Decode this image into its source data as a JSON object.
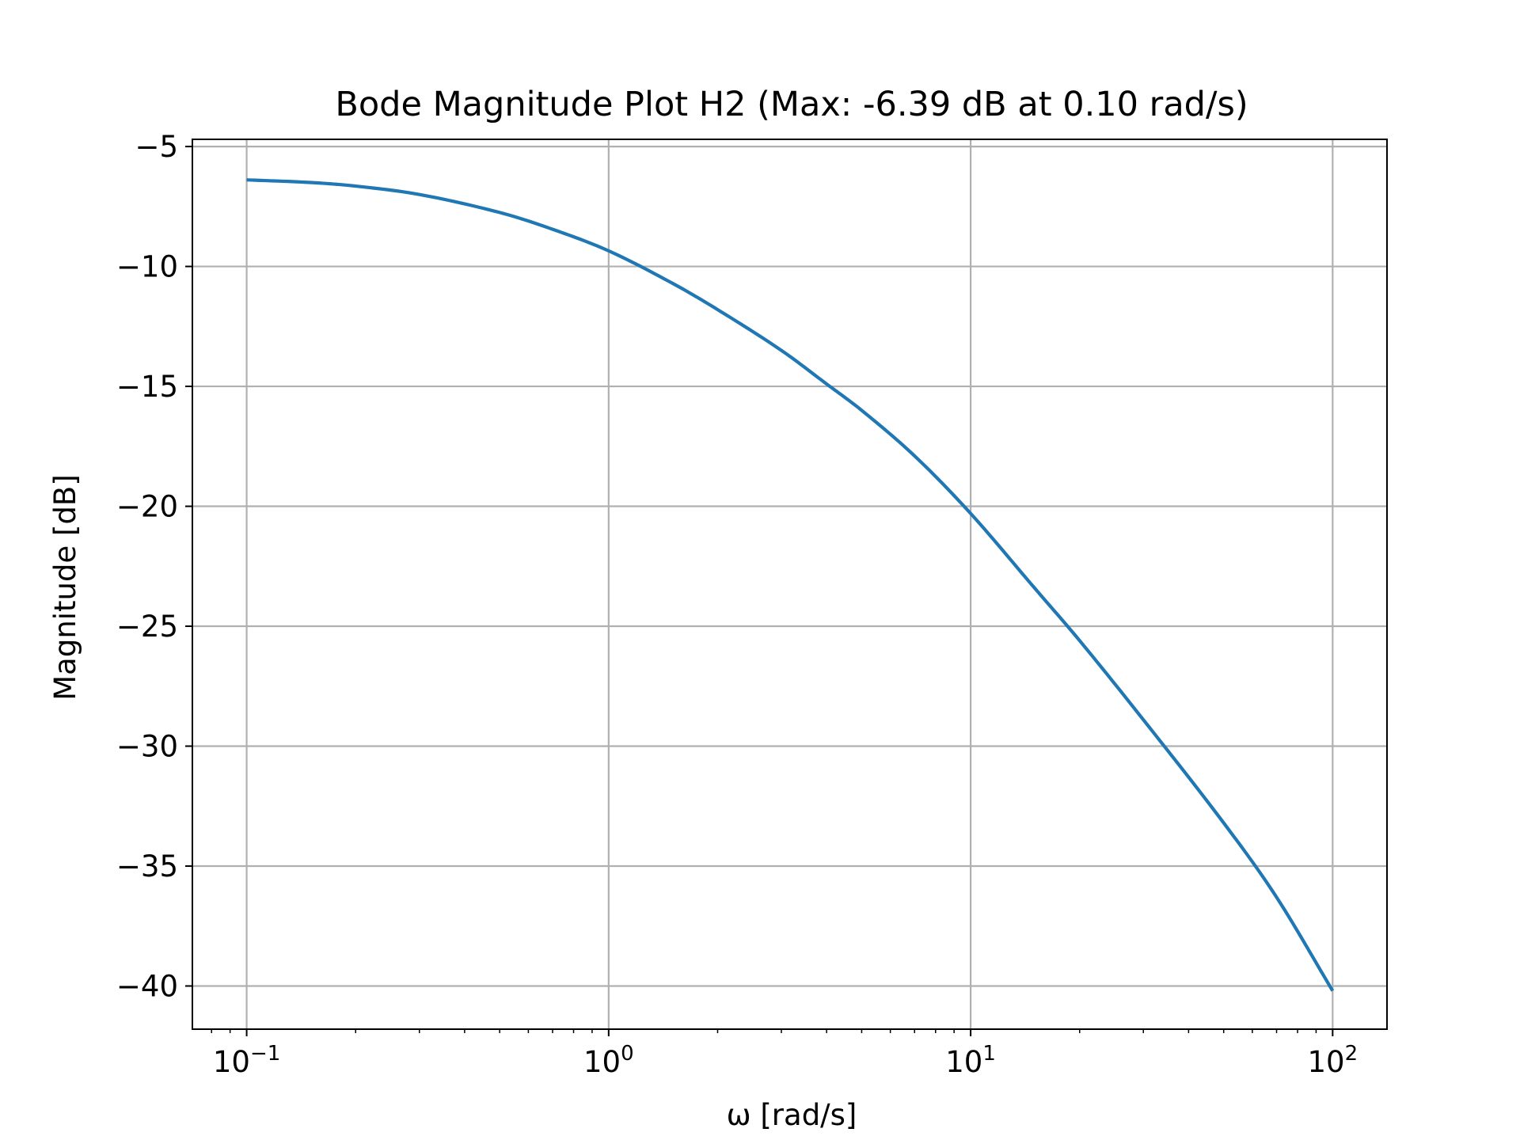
{
  "chart_data": {
    "type": "line",
    "title": "Bode Magnitude Plot H2 (Max: -6.39 dB at 0.10 rad/s)",
    "xlabel": "ω [rad/s]",
    "ylabel": "Magnitude [dB]",
    "x_scale": "log",
    "xlim": [
      0.0708,
      141.3
    ],
    "ylim": [
      -41.8,
      -4.7
    ],
    "grid": true,
    "x_ticks": [
      {
        "value": 0.1,
        "base": "10",
        "exp": "−1"
      },
      {
        "value": 1,
        "base": "10",
        "exp": "0"
      },
      {
        "value": 10,
        "base": "10",
        "exp": "1"
      },
      {
        "value": 100,
        "base": "10",
        "exp": "2"
      }
    ],
    "y_ticks": [
      {
        "value": -5,
        "label": "−5"
      },
      {
        "value": -10,
        "label": "−10"
      },
      {
        "value": -15,
        "label": "−15"
      },
      {
        "value": -20,
        "label": "−20"
      },
      {
        "value": -25,
        "label": "−25"
      },
      {
        "value": -30,
        "label": "−30"
      },
      {
        "value": -35,
        "label": "−35"
      },
      {
        "value": -40,
        "label": "−40"
      }
    ],
    "series": [
      {
        "color": "#1f77b4",
        "x": [
          0.1,
          0.15,
          0.2,
          0.3,
          0.5,
          0.7,
          1.0,
          1.5,
          2.0,
          3.0,
          4.0,
          5.0,
          7.0,
          10.0,
          15.0,
          20.0,
          30.0,
          50.0,
          70.0,
          100.0
        ],
        "y": [
          -6.39,
          -6.5,
          -6.65,
          -7.0,
          -7.75,
          -8.45,
          -9.35,
          -10.7,
          -11.8,
          -13.5,
          -14.9,
          -16.0,
          -17.9,
          -20.3,
          -23.4,
          -25.6,
          -28.9,
          -33.2,
          -36.3,
          -40.2
        ]
      }
    ]
  }
}
